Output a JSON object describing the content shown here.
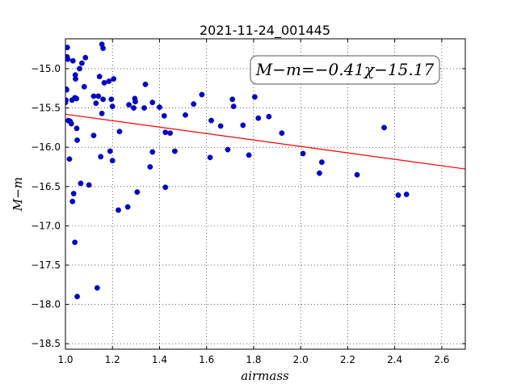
{
  "chart_data": {
    "type": "scatter",
    "title": "2021-11-24_001445",
    "xlabel": "airmass",
    "ylabel": "M−m",
    "xlim": [
      1.0,
      2.7
    ],
    "ylim": [
      -18.57,
      -14.62
    ],
    "x_ticks": [
      1.0,
      1.2,
      1.4,
      1.6,
      1.8,
      2.0,
      2.2,
      2.4,
      2.6
    ],
    "x_tick_labels": [
      "1.0",
      "1.2",
      "1.4",
      "1.6",
      "1.8",
      "2.0",
      "2.2",
      "2.4",
      "2.6"
    ],
    "y_ticks": [
      -15.0,
      -15.5,
      -16.0,
      -16.5,
      -17.0,
      -17.5,
      -18.0,
      -18.5
    ],
    "y_tick_labels": [
      "−15.0",
      "−15.5",
      "−16.0",
      "−16.5",
      "−17.0",
      "−17.5",
      "−18.0",
      "−18.5"
    ],
    "grid": true,
    "annotation": "M−m=−0.41χ−15.17",
    "fit_line": {
      "slope": -0.41,
      "intercept": -15.17,
      "color": "#ff0000"
    },
    "point_color": "#0000cc",
    "series": [
      {
        "points": [
          [
            1.0,
            -15.43
          ],
          [
            1.002,
            -15.4
          ],
          [
            1.003,
            -15.26
          ],
          [
            1.005,
            -15.27
          ],
          [
            1.007,
            -14.85
          ],
          [
            1.008,
            -14.73
          ],
          [
            1.01,
            -14.88
          ],
          [
            1.012,
            -15.66
          ],
          [
            1.017,
            -16.15
          ],
          [
            1.02,
            -15.67
          ],
          [
            1.025,
            -15.7
          ],
          [
            1.028,
            -15.4
          ],
          [
            1.03,
            -16.69
          ],
          [
            1.032,
            -14.9
          ],
          [
            1.035,
            -16.59
          ],
          [
            1.04,
            -15.37
          ],
          [
            1.04,
            -17.21
          ],
          [
            1.042,
            -15.08
          ],
          [
            1.043,
            -15.13
          ],
          [
            1.047,
            -15.38
          ],
          [
            1.048,
            -15.76
          ],
          [
            1.05,
            -15.91
          ],
          [
            1.05,
            -17.9
          ],
          [
            1.06,
            -15.0
          ],
          [
            1.065,
            -16.46
          ],
          [
            1.07,
            -14.93
          ],
          [
            1.08,
            -15.23
          ],
          [
            1.085,
            -14.86
          ],
          [
            1.1,
            -16.48
          ],
          [
            1.12,
            -15.35
          ],
          [
            1.12,
            -15.85
          ],
          [
            1.13,
            -15.44
          ],
          [
            1.135,
            -17.79
          ],
          [
            1.14,
            -15.35
          ],
          [
            1.145,
            -15.1
          ],
          [
            1.15,
            -16.12
          ],
          [
            1.155,
            -15.57
          ],
          [
            1.155,
            -14.69
          ],
          [
            1.16,
            -14.74
          ],
          [
            1.16,
            -15.39
          ],
          [
            1.165,
            -15.18
          ],
          [
            1.185,
            -15.16
          ],
          [
            1.19,
            -16.05
          ],
          [
            1.195,
            -15.39
          ],
          [
            1.2,
            -15.48
          ],
          [
            1.2,
            -16.17
          ],
          [
            1.205,
            -15.13
          ],
          [
            1.225,
            -16.8
          ],
          [
            1.23,
            -15.8
          ],
          [
            1.265,
            -16.76
          ],
          [
            1.27,
            -15.46
          ],
          [
            1.29,
            -15.5
          ],
          [
            1.295,
            -15.38
          ],
          [
            1.297,
            -15.42
          ],
          [
            1.305,
            -16.57
          ],
          [
            1.335,
            -15.5
          ],
          [
            1.34,
            -15.2
          ],
          [
            1.36,
            -16.25
          ],
          [
            1.37,
            -15.43
          ],
          [
            1.37,
            -16.06
          ],
          [
            1.4,
            -15.49
          ],
          [
            1.42,
            -15.6
          ],
          [
            1.425,
            -15.81
          ],
          [
            1.425,
            -16.51
          ],
          [
            1.445,
            -15.82
          ],
          [
            1.465,
            -16.05
          ],
          [
            1.51,
            -15.59
          ],
          [
            1.545,
            -15.45
          ],
          [
            1.58,
            -15.33
          ],
          [
            1.615,
            -16.13
          ],
          [
            1.62,
            -15.66
          ],
          [
            1.66,
            -15.73
          ],
          [
            1.69,
            -16.03
          ],
          [
            1.71,
            -15.39
          ],
          [
            1.715,
            -15.48
          ],
          [
            1.755,
            -15.72
          ],
          [
            1.78,
            -16.1
          ],
          [
            1.805,
            -15.36
          ],
          [
            1.82,
            -15.63
          ],
          [
            1.865,
            -15.61
          ],
          [
            1.92,
            -15.82
          ],
          [
            2.01,
            -16.08
          ],
          [
            2.08,
            -16.33
          ],
          [
            2.09,
            -16.19
          ],
          [
            2.24,
            -16.35
          ],
          [
            2.355,
            -15.75
          ],
          [
            2.415,
            -16.61
          ],
          [
            2.45,
            -16.6
          ]
        ]
      }
    ]
  }
}
